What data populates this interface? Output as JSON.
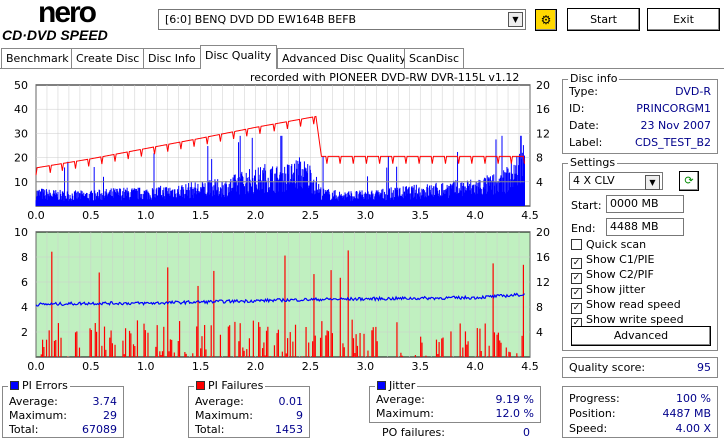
{
  "header": {
    "logo_top": "nero",
    "logo_bottom": "CD·DVD SPEED",
    "drive": "[6:0]  BENQ DVD DD EW164B BEFB",
    "start_label": "Start",
    "exit_label": "Exit",
    "refresh_icon": "refresh-drive-icon"
  },
  "tabs": [
    {
      "label": "Benchmark"
    },
    {
      "label": "Create Disc"
    },
    {
      "label": "Disc Info"
    },
    {
      "label": "Disc Quality",
      "active": true
    },
    {
      "label": "Advanced Disc Quality"
    },
    {
      "label": "ScanDisc"
    }
  ],
  "chart_title": "recorded with PIONEER DVD-RW  DVR-115L v1.12",
  "disc_info": {
    "title": "Disc info",
    "rows": [
      {
        "label": "Type:",
        "value": "DVD-R"
      },
      {
        "label": "ID:",
        "value": "PRINCORGM1"
      },
      {
        "label": "Date:",
        "value": "23 Nov 2007"
      },
      {
        "label": "Label:",
        "value": "CDS_TEST_B2"
      }
    ]
  },
  "settings": {
    "title": "Settings",
    "speed": "4 X CLV",
    "start_label": "Start:",
    "start_value": "0000 MB",
    "end_label": "End:",
    "end_value": "4488 MB",
    "checks": [
      {
        "label": "Quick scan",
        "checked": false
      },
      {
        "label": "Show C1/PIE",
        "checked": true
      },
      {
        "label": "Show C2/PIF",
        "checked": true
      },
      {
        "label": "Show jitter",
        "checked": true
      },
      {
        "label": "Show read speed",
        "checked": true
      },
      {
        "label": "Show write speed",
        "checked": true
      }
    ],
    "advanced_label": "Advanced"
  },
  "quality": {
    "label": "Quality score:",
    "value": "95"
  },
  "progress": {
    "rows": [
      {
        "label": "Progress:",
        "value": "100 %"
      },
      {
        "label": "Position:",
        "value": "4487 MB"
      },
      {
        "label": "Speed:",
        "value": "4.00 X"
      }
    ]
  },
  "pi_errors": {
    "title": "PI Errors",
    "color": "#0000ff",
    "rows": [
      {
        "label": "Average:",
        "value": "3.74"
      },
      {
        "label": "Maximum:",
        "value": "29"
      },
      {
        "label": "Total:",
        "value": "67089"
      }
    ]
  },
  "pi_failures": {
    "title": "PI Failures",
    "color": "#ff0000",
    "rows": [
      {
        "label": "Average:",
        "value": "0.01"
      },
      {
        "label": "Maximum:",
        "value": "9"
      },
      {
        "label": "Total:",
        "value": "1453"
      }
    ]
  },
  "jitter": {
    "title": "Jitter",
    "color": "#0000ff",
    "rows": [
      {
        "label": "Average:",
        "value": "9.19 %"
      },
      {
        "label": "Maximum:",
        "value": "12.0 %"
      }
    ],
    "po_label": "PO failures:",
    "po_value": "0"
  },
  "chart_data": [
    {
      "type": "bar",
      "name": "PI Errors",
      "x_ticks": [
        "0.0",
        "0.5",
        "1.0",
        "1.5",
        "2.0",
        "2.5",
        "3.0",
        "3.5",
        "4.0",
        "4.5"
      ],
      "xlim": [
        0,
        4.5
      ],
      "ylim": [
        0,
        50
      ],
      "y_ticks": [
        "50",
        "40",
        "30",
        "20",
        "10"
      ],
      "y2lim": [
        0,
        20
      ],
      "y2_ticks": [
        "20",
        "16",
        "12",
        "8",
        "4"
      ],
      "pi_errors_x": [
        0,
        0.25,
        0.5,
        0.75,
        1.0,
        1.25,
        1.5,
        1.75,
        1.9,
        2.0,
        2.1,
        2.2,
        2.3,
        2.4,
        2.5,
        2.6,
        2.75,
        3.0,
        3.25,
        3.5,
        3.75,
        4.0,
        4.25,
        4.4,
        4.45
      ],
      "pi_errors_y": [
        6,
        5,
        5,
        6,
        6,
        7,
        8,
        9,
        12,
        12,
        14,
        13,
        14,
        16,
        14,
        6,
        5,
        5,
        6,
        7,
        8,
        9,
        11,
        18,
        22
      ],
      "read_speed_x": [
        0,
        0.5,
        1.0,
        1.5,
        2.0,
        2.55,
        2.6,
        3.0,
        3.5,
        4.0,
        4.45
      ],
      "read_speed_y": [
        6.3,
        7.8,
        9.5,
        11.2,
        13,
        14.8,
        8.2,
        8.2,
        8.2,
        8.2,
        8.2
      ],
      "write_speed": 4
    },
    {
      "type": "bar",
      "name": "PI Failures / Jitter",
      "x_ticks": [
        "0.0",
        "0.5",
        "1.0",
        "1.5",
        "2.0",
        "2.5",
        "3.0",
        "3.5",
        "4.0",
        "4.5"
      ],
      "xlim": [
        0,
        4.5
      ],
      "ylim": [
        0,
        10
      ],
      "y_ticks": [
        "10",
        "8",
        "6",
        "4",
        "2"
      ],
      "y2lim": [
        0,
        20
      ],
      "y2_ticks": [
        "20",
        "16",
        "12",
        "8",
        "4"
      ],
      "pi_failures_max": 9,
      "jitter_x": [
        0,
        0.5,
        1.0,
        1.5,
        2.0,
        2.5,
        3.0,
        3.5,
        4.0,
        4.45
      ],
      "jitter_y": [
        8.4,
        8.6,
        8.6,
        8.8,
        9.0,
        9.2,
        9.3,
        9.4,
        9.5,
        10
      ]
    }
  ]
}
